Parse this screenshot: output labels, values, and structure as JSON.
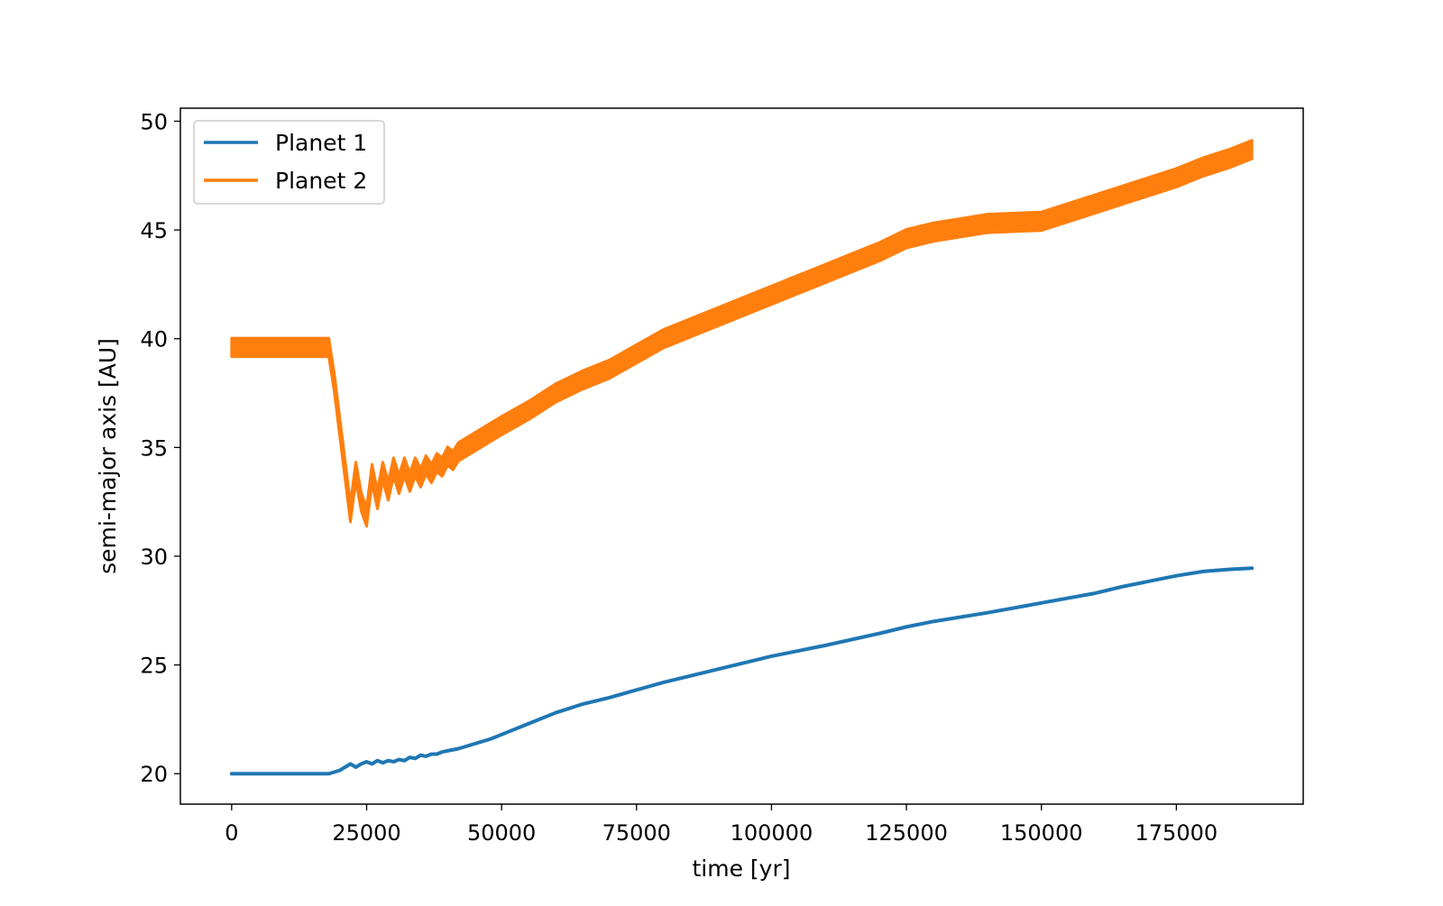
{
  "chart_data": {
    "type": "line",
    "title": "",
    "xlabel": "time [yr]",
    "ylabel": "semi-major axis [AU]",
    "xlim": [
      -9500,
      198500
    ],
    "ylim": [
      18.6,
      50.6
    ],
    "xticks": [
      0,
      25000,
      50000,
      75000,
      100000,
      125000,
      150000,
      175000
    ],
    "yticks": [
      20,
      25,
      30,
      35,
      40,
      45,
      50
    ],
    "grid": false,
    "legend": "upper-left",
    "series": [
      {
        "name": "Planet 1",
        "color": "#1f77b4",
        "x": [
          0,
          18000,
          20000,
          21000,
          22000,
          23000,
          24000,
          25000,
          26000,
          27000,
          28000,
          29000,
          30000,
          31000,
          32000,
          33000,
          34000,
          35000,
          36000,
          37000,
          38000,
          39000,
          40000,
          42000,
          44000,
          46000,
          48000,
          50000,
          55000,
          60000,
          65000,
          70000,
          75000,
          80000,
          85000,
          90000,
          95000,
          100000,
          110000,
          120000,
          125000,
          130000,
          140000,
          150000,
          160000,
          165000,
          170000,
          175000,
          180000,
          185000,
          189000
        ],
        "y": [
          20.0,
          20.0,
          20.15,
          20.3,
          20.45,
          20.3,
          20.45,
          20.55,
          20.45,
          20.6,
          20.5,
          20.6,
          20.55,
          20.65,
          20.6,
          20.75,
          20.7,
          20.85,
          20.8,
          20.9,
          20.9,
          21.0,
          21.05,
          21.15,
          21.3,
          21.45,
          21.6,
          21.8,
          22.3,
          22.8,
          23.2,
          23.5,
          23.85,
          24.2,
          24.5,
          24.8,
          25.1,
          25.4,
          25.9,
          26.45,
          26.75,
          27.0,
          27.4,
          27.85,
          28.3,
          28.6,
          28.85,
          29.1,
          29.3,
          29.4,
          29.45
        ]
      },
      {
        "name": "Planet 2",
        "color": "#ff7f0e",
        "x": [
          0,
          18000,
          19000,
          20000,
          21000,
          22000,
          23000,
          24000,
          25000,
          26000,
          27000,
          28000,
          29000,
          30000,
          31000,
          32000,
          33000,
          34000,
          35000,
          36000,
          37000,
          38000,
          39000,
          40000,
          41000,
          42000,
          44000,
          46000,
          48000,
          50000,
          55000,
          60000,
          65000,
          70000,
          75000,
          80000,
          85000,
          90000,
          95000,
          100000,
          105000,
          110000,
          115000,
          120000,
          125000,
          130000,
          135000,
          140000,
          145000,
          150000,
          155000,
          160000,
          165000,
          170000,
          175000,
          180000,
          185000,
          189000
        ],
        "y": [
          39.6,
          39.6,
          38.0,
          36.0,
          34.0,
          32.0,
          33.9,
          32.5,
          31.8,
          33.8,
          32.6,
          33.9,
          33.0,
          34.1,
          33.3,
          34.1,
          33.4,
          34.1,
          33.6,
          34.2,
          33.8,
          34.3,
          34.1,
          34.6,
          34.4,
          34.8,
          35.1,
          35.4,
          35.7,
          36.0,
          36.7,
          37.5,
          38.1,
          38.6,
          39.3,
          40.0,
          40.5,
          41.0,
          41.5,
          42.0,
          42.5,
          43.0,
          43.5,
          44.0,
          44.6,
          44.9,
          45.1,
          45.3,
          45.35,
          45.4,
          45.8,
          46.2,
          46.6,
          47.0,
          47.4,
          47.9,
          48.3,
          48.7
        ],
        "band": 0.85
      }
    ]
  }
}
